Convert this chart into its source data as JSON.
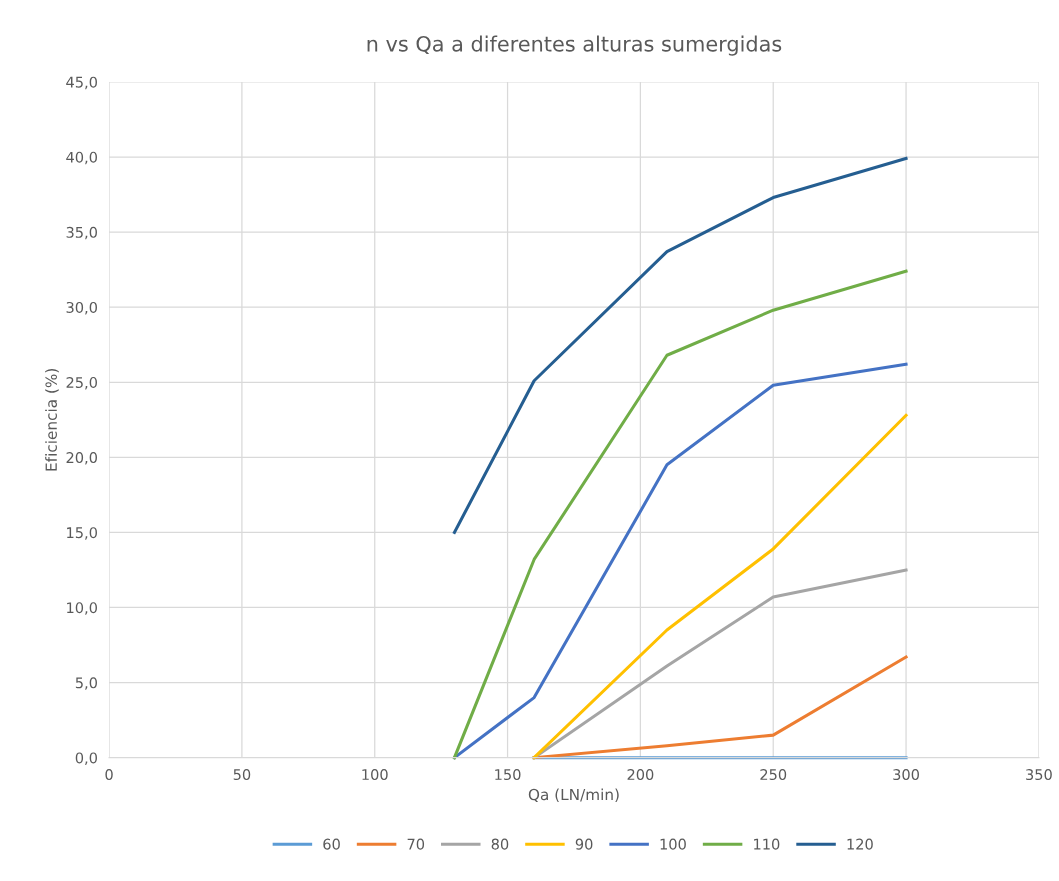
{
  "chart_data": {
    "type": "line",
    "title": "n vs Qa a diferentes alturas sumergidas",
    "xlabel": "Qa (LN/min)",
    "ylabel": "Eficiencia (%)",
    "xlim": [
      0,
      350
    ],
    "xticks": [
      0,
      50,
      100,
      150,
      200,
      250,
      300,
      350
    ],
    "ylim": [
      0,
      45
    ],
    "yticks": [
      {
        "value": 0,
        "label": "0,0"
      },
      {
        "value": 5,
        "label": "5,0"
      },
      {
        "value": 10,
        "label": "10,0"
      },
      {
        "value": 15,
        "label": "15,0"
      },
      {
        "value": 20,
        "label": "20,0"
      },
      {
        "value": 25,
        "label": "25,0"
      },
      {
        "value": 30,
        "label": "30,0"
      },
      {
        "value": 35,
        "label": "35,0"
      },
      {
        "value": 40,
        "label": "40,0"
      },
      {
        "value": 45,
        "label": "45,0"
      }
    ],
    "grid": true,
    "legend": "bottom",
    "marker": "none",
    "line_style": "solid",
    "series": [
      {
        "name": "60",
        "color": "#5b9bd5",
        "x": [
          160,
          210,
          250,
          300
        ],
        "values": [
          0,
          0,
          0,
          0
        ]
      },
      {
        "name": "70",
        "color": "#ed7d31",
        "x": [
          160,
          210,
          250,
          300
        ],
        "values": [
          0,
          0.8,
          1.5,
          6.7
        ]
      },
      {
        "name": "80",
        "color": "#a5a5a5",
        "x": [
          160,
          210,
          250,
          300
        ],
        "values": [
          0,
          6.1,
          10.7,
          12.5
        ]
      },
      {
        "name": "90",
        "color": "#ffc000",
        "x": [
          160,
          210,
          250,
          300
        ],
        "values": [
          0,
          8.5,
          13.9,
          22.8
        ]
      },
      {
        "name": "100",
        "color": "#4472c4",
        "x": [
          130,
          160,
          210,
          250,
          300
        ],
        "values": [
          0,
          4.0,
          19.5,
          24.8,
          26.2
        ]
      },
      {
        "name": "110",
        "color": "#70ad47",
        "x": [
          130,
          160,
          210,
          250,
          300
        ],
        "values": [
          0,
          13.2,
          26.8,
          29.8,
          32.4
        ]
      },
      {
        "name": "120",
        "color": "#255e91",
        "x": [
          130,
          160,
          210,
          250,
          300
        ],
        "values": [
          15.0,
          25.1,
          33.7,
          37.3,
          39.9
        ]
      }
    ]
  }
}
